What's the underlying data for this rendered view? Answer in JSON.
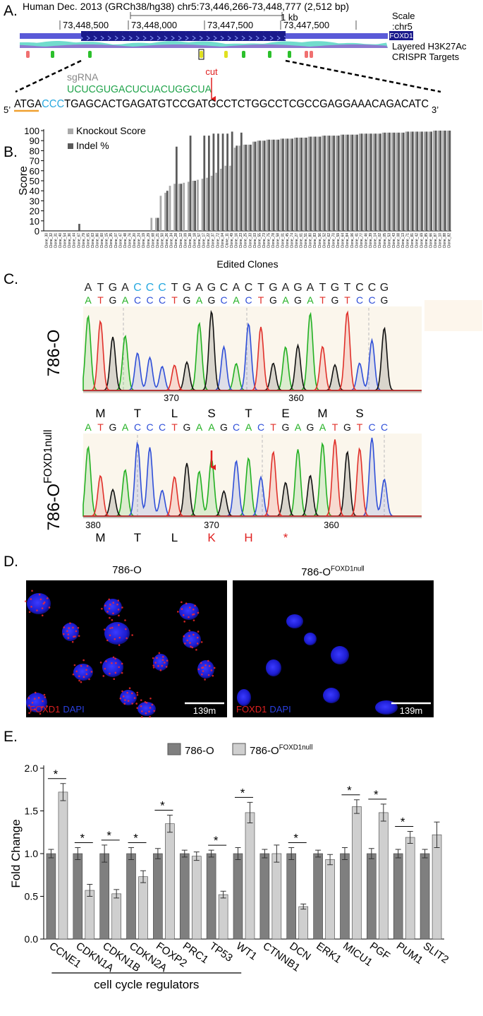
{
  "panel_labels": [
    "A.",
    "B.",
    "C.",
    "D.",
    "E."
  ],
  "panel_a": {
    "title": "Human Dec. 2013 (GRCh38/hg38) chr5:73,446,266-73,448,777 (2,512 bp)",
    "scale_label": "1 kb",
    "scale_title": "Scale",
    "chrom": ":chr5",
    "coordinates": [
      "73,448,500",
      "73,448,000",
      "73,447,500",
      "73,447,500"
    ],
    "gene": "FOXD1",
    "tracks": [
      "Layered H3K27Ac",
      "CRISPR Targets"
    ],
    "sgrna_label": "sgRNA",
    "sgrna": "UCUCGUGACUCUACUGGCUA",
    "cut_label": "cut",
    "five_prime": "5’",
    "three_prime": "3’",
    "sequence_parts": [
      "ATGA",
      "CCC",
      "TGAGCACTGAGATGTCCGATGCCTCTGGCCTCGCCGAGGAAACAGACATC"
    ],
    "sequence_colors": [
      "#000000",
      "#29a9e0",
      "#000000"
    ]
  },
  "chart_data": [
    {
      "type": "bar",
      "ylabel": "Score",
      "xlabel": "Edited Clones",
      "categories": [
        "Clone_30",
        "Clone_32",
        "Clone_31",
        "Clone_40",
        "Clone_54",
        "Clone_36",
        "Clone_44",
        "Clone_67",
        "Clone_79",
        "Clone_65",
        "Clone_63",
        "Clone_86",
        "Clone_60",
        "Clone_15",
        "Clone_35",
        "Clone_07",
        "Clone_47",
        "Clone_48",
        "Clone_76",
        "Clone_20",
        "Clone_24",
        "Clone_19",
        "Clone_29",
        "Clone_68",
        "Clone_21",
        "Clone_50",
        "Clone_26",
        "Clone_34",
        "Clone_28",
        "Clone_12",
        "Clone_09",
        "Clone_38",
        "Clone_18",
        "Clone_57",
        "Clone_17",
        "Clone_22",
        "Clone_37",
        "Clone_72",
        "Clone_04",
        "Clone_11",
        "Clone_49",
        "Clone_16",
        "Clone_23",
        "Clone_25",
        "Clone_33",
        "Clone_03",
        "Clone_55",
        "Clone_73",
        "Clone_75",
        "Clone_78",
        "Clone_58",
        "Clone_01",
        "Clone_45",
        "Clone_74",
        "Clone_27",
        "Clone_61",
        "Clone_51",
        "Clone_80",
        "Clone_83",
        "Clone_56",
        "Clone_52",
        "Clone_62",
        "Clone_70",
        "Clone_59",
        "Clone_64",
        "Clone_84",
        "Clone_06",
        "Clone_41",
        "Clone_77",
        "Clone_46",
        "Clone_39",
        "Clone_14",
        "Clone_02",
        "Clone_05",
        "Clone_53",
        "Clone_43",
        "Clone_08",
        "Clone_13",
        "Clone_71",
        "Clone_81",
        "Clone_42",
        "Clone_69",
        "Clone_85",
        "Clone_66",
        "Clone_87",
        "Clone_10",
        "Clone_88",
        "Clone_82"
      ],
      "series": [
        {
          "name": "Knockout Score",
          "color": "#a9a9a9",
          "values": [
            0,
            0,
            0,
            0,
            0,
            0,
            0,
            0,
            0,
            0,
            0,
            0,
            0,
            0,
            0,
            0,
            0,
            0,
            0,
            0,
            0,
            0,
            0,
            13,
            13,
            35,
            38,
            45,
            47,
            47,
            48,
            49,
            50,
            51,
            52,
            53,
            55,
            58,
            62,
            65,
            65,
            83,
            85,
            86,
            86,
            89,
            90,
            90,
            91,
            91,
            91,
            92,
            92,
            92,
            93,
            93,
            93,
            94,
            94,
            94,
            95,
            95,
            95,
            95,
            96,
            96,
            96,
            96,
            97,
            97,
            97,
            97,
            97,
            98,
            98,
            98,
            98,
            98,
            99,
            99,
            99,
            99,
            99,
            99,
            100,
            100,
            100,
            100
          ]
        },
        {
          "name": "Indel %",
          "color": "#5a5a5a",
          "values": [
            0,
            0,
            0,
            0,
            0,
            0,
            0,
            7,
            0,
            0,
            0,
            0,
            0,
            0,
            0,
            0,
            0,
            0,
            0,
            0,
            0,
            0,
            0,
            0,
            13,
            0,
            40,
            0,
            84,
            47,
            0,
            95,
            50,
            0,
            95,
            95,
            97,
            97,
            97,
            97,
            99,
            85,
            98,
            86,
            86,
            89,
            90,
            90,
            91,
            91,
            91,
            92,
            92,
            92,
            93,
            93,
            93,
            94,
            94,
            94,
            95,
            95,
            95,
            95,
            96,
            96,
            96,
            96,
            97,
            97,
            97,
            97,
            97,
            98,
            98,
            98,
            98,
            98,
            99,
            99,
            99,
            99,
            99,
            99,
            100,
            100,
            100,
            100
          ]
        }
      ],
      "ylim": [
        0,
        100
      ],
      "yticks": [
        0,
        10,
        20,
        30,
        40,
        50,
        60,
        70,
        80,
        90,
        100
      ],
      "legend": "upper left"
    },
    {
      "type": "bar",
      "ylabel": "Fold Change",
      "categories": [
        "CCNE1",
        "CDKN1A",
        "CDKN1B",
        "CDKN2A",
        "FOXP2",
        "PRC1",
        "TP53",
        "WT1",
        "CTNNB1",
        "DCN",
        "ERK1",
        "MICU1",
        "PGF",
        "PUM1",
        "SLIT2"
      ],
      "series": [
        {
          "name": "786-O",
          "color": "#7f7f7f",
          "values": [
            1,
            1,
            1,
            1,
            1,
            1,
            1,
            1,
            1,
            1,
            1,
            1,
            1,
            1,
            1
          ],
          "errors": [
            0.05,
            0.07,
            0.1,
            0.07,
            0.06,
            0.04,
            0.04,
            0.07,
            0.05,
            0.07,
            0.04,
            0.07,
            0.06,
            0.05,
            0.05
          ]
        },
        {
          "name": "786-O",
          "name_superscript": "FOXD1null",
          "color": "#cfcfcf",
          "values": [
            1.72,
            0.57,
            0.53,
            0.73,
            1.35,
            0.97,
            0.52,
            1.48,
            1.0,
            0.38,
            0.93,
            1.55,
            1.48,
            1.19,
            1.22
          ],
          "errors": [
            0.1,
            0.07,
            0.05,
            0.07,
            0.1,
            0.05,
            0.04,
            0.12,
            0.1,
            0.03,
            0.06,
            0.08,
            0.1,
            0.07,
            0.15
          ]
        }
      ],
      "significance": [
        "*",
        "*",
        "*",
        "*",
        "*",
        null,
        "*",
        "*",
        null,
        "*",
        null,
        "*",
        "*",
        "*",
        null
      ],
      "group": {
        "label": "cell cycle regulators",
        "categories": [
          "CCNE1",
          "CDKN1A",
          "CDKN1B",
          "CDKN2A",
          "FOXP2",
          "PRC1",
          "TP53"
        ]
      },
      "ylim": [
        0,
        2
      ],
      "yticks": [
        {
          "value": 0,
          "label": "0.0"
        },
        {
          "value": 0.5,
          "label": "0.5"
        },
        {
          "value": 1,
          "label": "1.0"
        },
        {
          "value": 1.5,
          "label": "1.5"
        },
        {
          "value": 2,
          "label": "2.0"
        }
      ],
      "legend": "top"
    }
  ],
  "panel_c": {
    "samples": [
      {
        "name": "786-O",
        "reference_parts": [
          "ATGA",
          "CCC",
          "TGAGCACTGAGATGTCCG"
        ],
        "reference_colors": [
          "#222222",
          "#29a9e0",
          "#222222"
        ],
        "called": [
          "A",
          "T",
          "G",
          "A",
          "C",
          "C",
          "C",
          "T",
          "G",
          "A",
          "G",
          "C",
          "A",
          "C",
          "T",
          "G",
          "A",
          "G",
          "A",
          "T",
          "G",
          "T",
          "C",
          "C",
          "G"
        ],
        "axis_labels": [
          "370",
          "360"
        ],
        "amino_acids": [
          "M",
          "T",
          "L",
          "S",
          "T",
          "E",
          "M",
          "S"
        ],
        "amino_acid_colors": [
          "#000000",
          "#000000",
          "#000000",
          "#000000",
          "#000000",
          "#000000",
          "#000000",
          "#000000"
        ]
      },
      {
        "name": "786-O",
        "name_superscript": "FOXD1null",
        "called": [
          "A",
          "T",
          "G",
          "A",
          "C",
          "C",
          "C",
          "T",
          "G",
          "A",
          "A",
          "G",
          "C",
          "A",
          "C",
          "T",
          "G",
          "A",
          "G",
          "A",
          "T",
          "G",
          "T",
          "C",
          "C"
        ],
        "axis_labels": [
          "380",
          "370",
          "360"
        ],
        "amino_acids": [
          "M",
          "T",
          "L",
          "K",
          "H",
          "*"
        ],
        "amino_acid_colors": [
          "#000000",
          "#000000",
          "#000000",
          "#e02020",
          "#e02020",
          "#e02020"
        ]
      }
    ],
    "base_colors": {
      "A": "#22b022",
      "C": "#2f4fd8",
      "G": "#111111",
      "T": "#e0302a"
    }
  },
  "panel_d": {
    "titles": [
      {
        "text": "786-O"
      },
      {
        "text": "786-O",
        "superscript": "FOXD1null"
      }
    ],
    "stain_labels": [
      "FOXD1",
      "DAPI"
    ],
    "stain_colors": [
      "#e02020",
      "#2a3fe0"
    ],
    "scale_bar": "139m"
  }
}
